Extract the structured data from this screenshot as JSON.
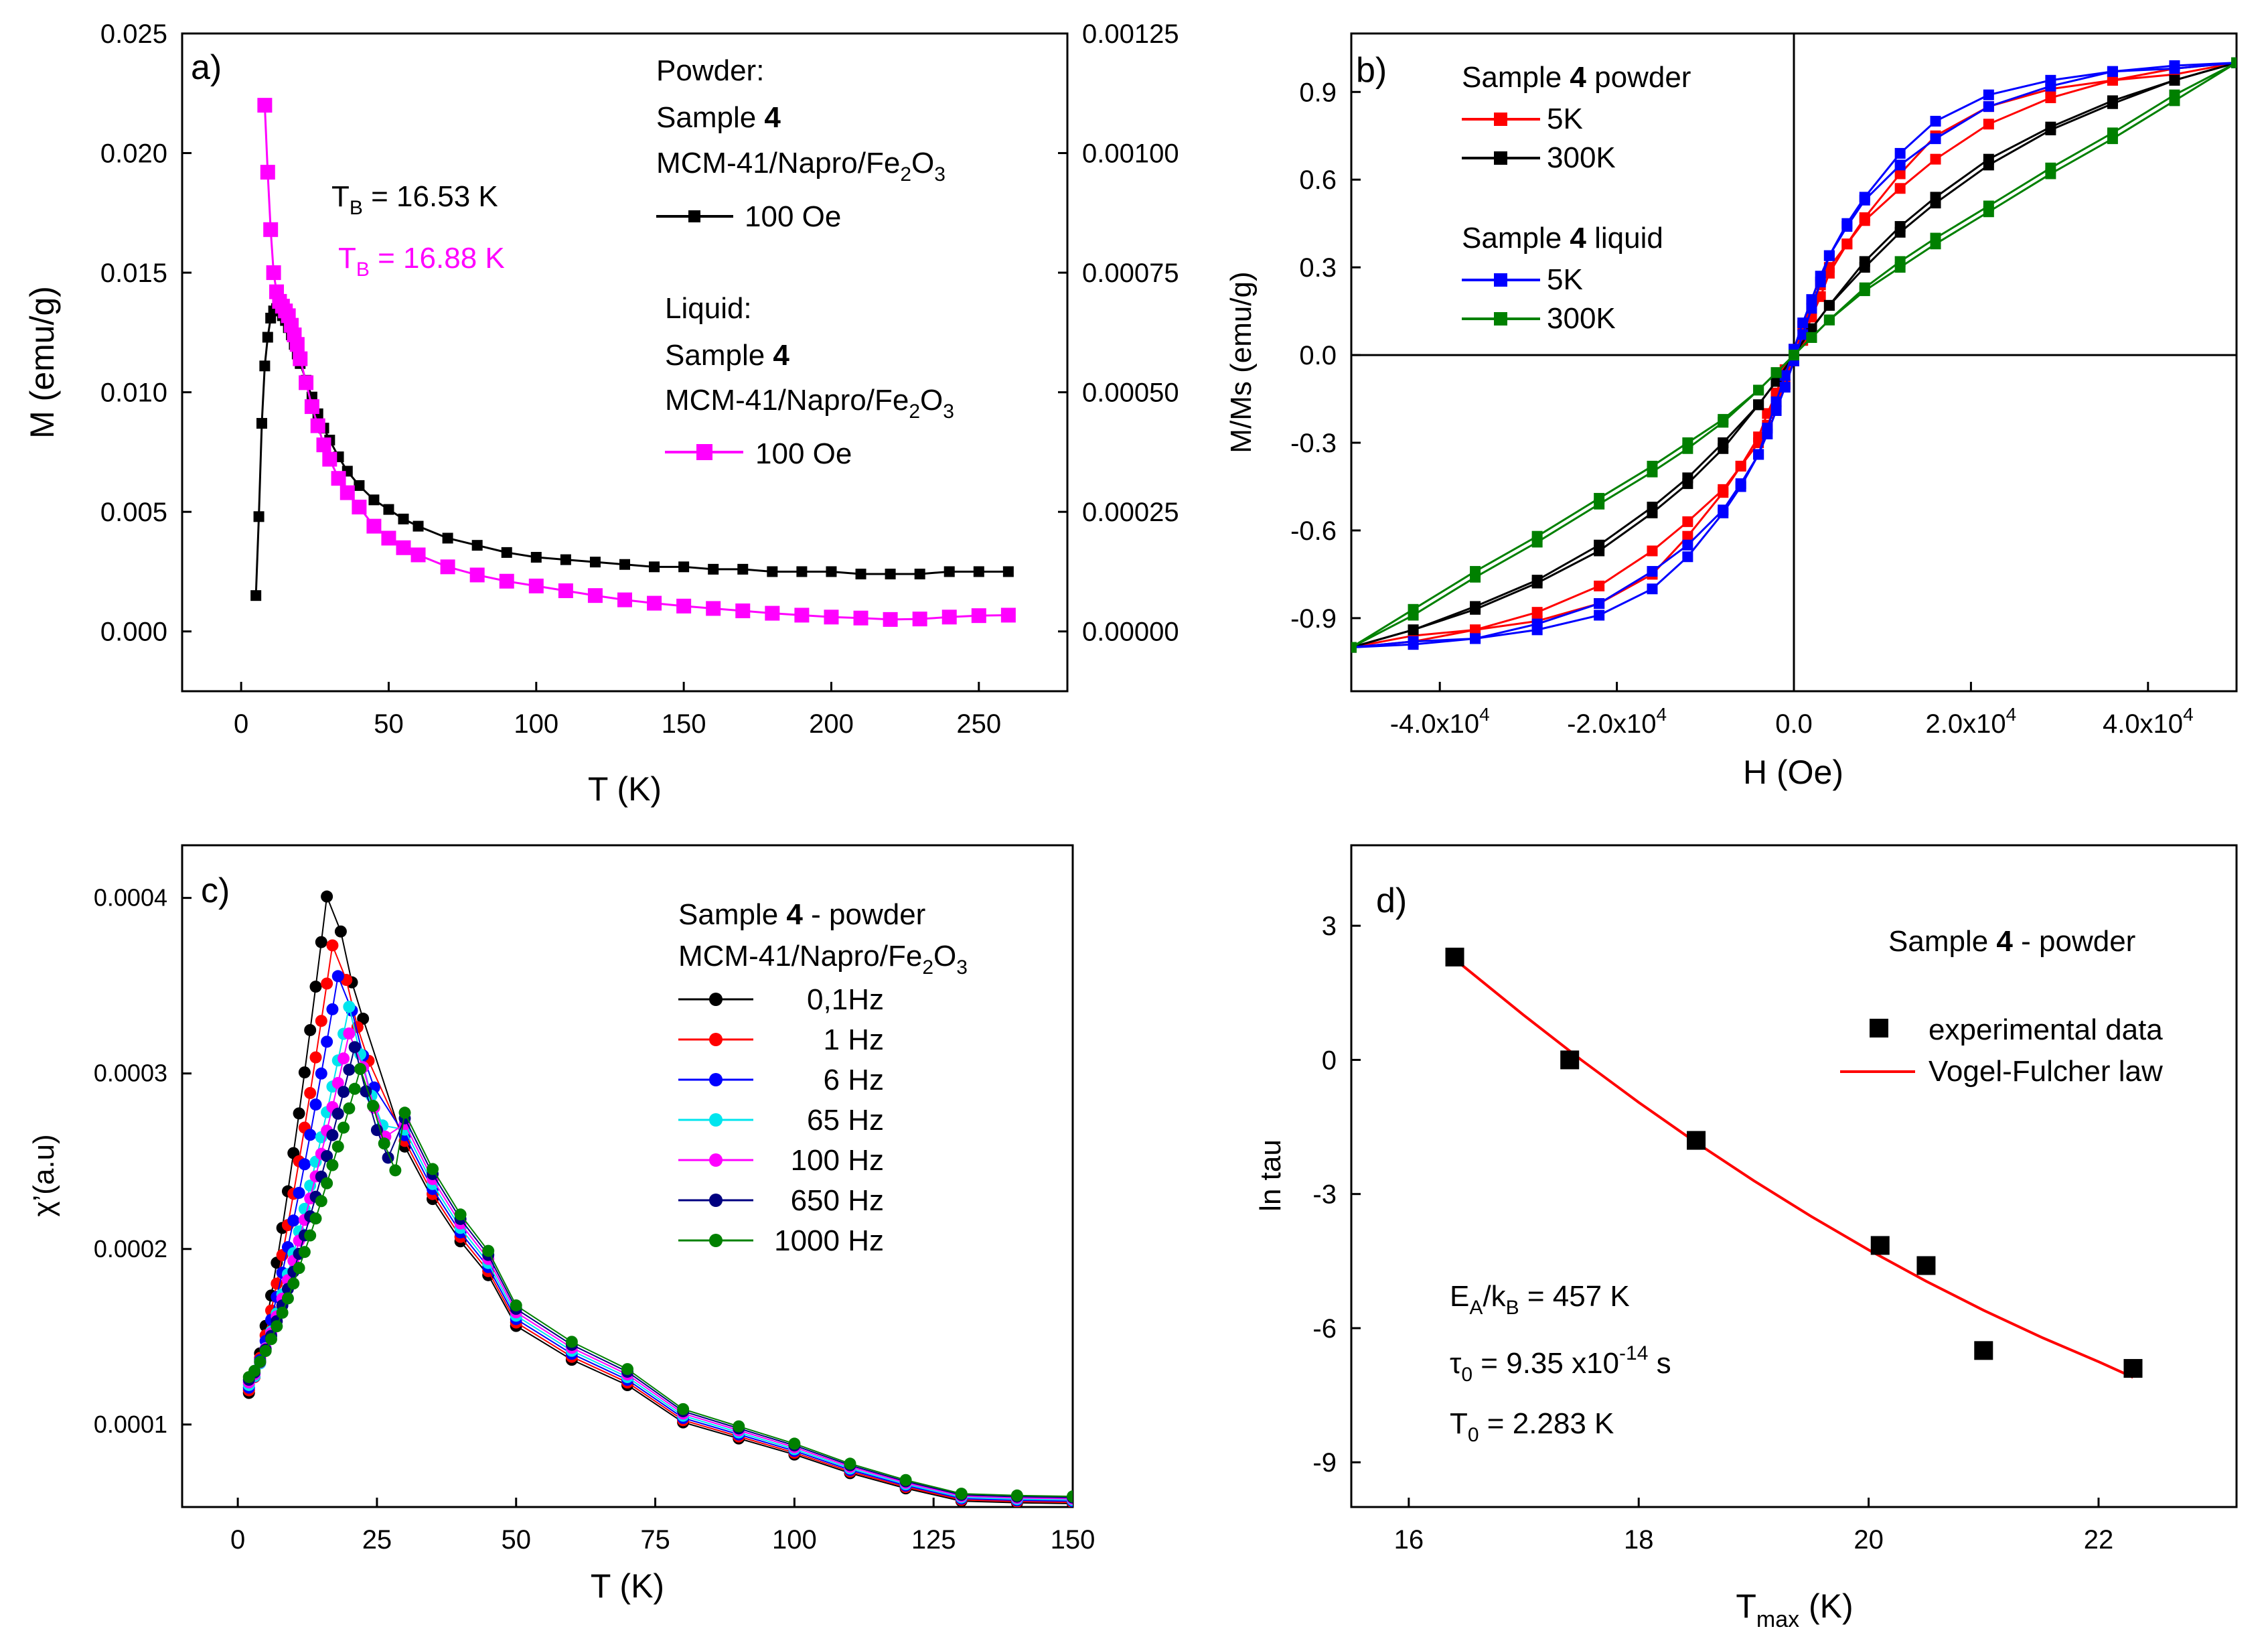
{
  "chart_data": [
    {
      "panel": "a)",
      "type": "line",
      "xlabel": "T (K)",
      "ylabel": "M (emu/g)",
      "xlim": [
        -20,
        280
      ],
      "ylim": [
        -0.0025,
        0.025
      ],
      "xticks": [
        0,
        50,
        100,
        150,
        200,
        250
      ],
      "yticks": [
        0.0,
        0.005,
        0.01,
        0.015,
        0.02,
        0.025
      ],
      "ytick_labels": [
        "0.000",
        "0.005",
        "0.010",
        "0.015",
        "0.020",
        "0.025"
      ],
      "y2lim": [
        -0.000125,
        0.00125
      ],
      "y2ticks": [
        0.0,
        0.00025,
        0.0005,
        0.00075,
        0.001,
        0.00125
      ],
      "y2tick_labels": [
        "0.00000",
        "0.00025",
        "0.00050",
        "0.00075",
        "0.00100",
        "0.00125"
      ],
      "legend": {
        "powder_title": "Powder:",
        "powder_sample_prefix": "Sample ",
        "powder_sample_num": "4",
        "powder_material": "MCM-41/Napro/Fe",
        "powder_sub1": "2",
        "powder_mid": "O",
        "powder_sub2": "3",
        "powder_entry": "100 Oe",
        "liquid_title": "Liquid:",
        "liquid_sample_prefix": "Sample ",
        "liquid_sample_num": "4",
        "liquid_material": "MCM-41/Napro/Fe",
        "liquid_sub1": "2",
        "liquid_mid": "O",
        "liquid_sub2": "3",
        "liquid_entry": "100 Oe"
      },
      "annotations": {
        "tb_powder_prefix": "T",
        "tb_powder_sub": "B",
        "tb_powder_value": " = 16.53 K",
        "tb_liquid_prefix": "T",
        "tb_liquid_sub": "B",
        "tb_liquid_value": " = 16.88 K"
      },
      "series": [
        {
          "name": "Powder 100 Oe",
          "color": "#000000",
          "axis": "left",
          "x": [
            5,
            6,
            7,
            8,
            9,
            10,
            11,
            12,
            13,
            14,
            15,
            16,
            17,
            18,
            19,
            20,
            22,
            24,
            26,
            28,
            30,
            33,
            36,
            40,
            45,
            50,
            55,
            60,
            70,
            80,
            90,
            100,
            110,
            120,
            130,
            140,
            150,
            160,
            170,
            180,
            190,
            200,
            210,
            220,
            230,
            240,
            250,
            260
          ],
          "y": [
            0.0015,
            0.0048,
            0.0087,
            0.0111,
            0.0123,
            0.0131,
            0.0134,
            0.0135,
            0.0134,
            0.0132,
            0.013,
            0.0127,
            0.0124,
            0.012,
            0.0116,
            0.0112,
            0.0105,
            0.0098,
            0.0091,
            0.0085,
            0.008,
            0.0073,
            0.0067,
            0.0061,
            0.0055,
            0.0051,
            0.0047,
            0.0044,
            0.0039,
            0.0036,
            0.0033,
            0.0031,
            0.003,
            0.0029,
            0.0028,
            0.0027,
            0.0027,
            0.0026,
            0.0026,
            0.0025,
            0.0025,
            0.0025,
            0.0024,
            0.0024,
            0.0024,
            0.0025,
            0.0025,
            0.0025
          ]
        },
        {
          "name": "Liquid 100 Oe",
          "color": "#ff00ff",
          "axis": "right",
          "x": [
            8,
            9,
            10,
            11,
            12,
            13,
            14,
            15,
            16,
            17,
            18,
            19,
            20,
            22,
            24,
            26,
            28,
            30,
            33,
            36,
            40,
            45,
            50,
            55,
            60,
            70,
            80,
            90,
            100,
            110,
            120,
            130,
            140,
            150,
            160,
            170,
            180,
            190,
            200,
            210,
            220,
            230,
            240,
            250,
            260
          ],
          "y": [
            0.0011,
            0.00096,
            0.00084,
            0.00075,
            0.00071,
            0.00069,
            0.00068,
            0.00067,
            0.00066,
            0.00064,
            0.00062,
            0.0006,
            0.00057,
            0.00052,
            0.00047,
            0.00043,
            0.00039,
            0.00036,
            0.00032,
            0.00029,
            0.00026,
            0.00022,
            0.000195,
            0.000175,
            0.00016,
            0.000135,
            0.000118,
            0.000105,
            9.5e-05,
            8.5e-05,
            7.5e-05,
            6.6e-05,
            5.9e-05,
            5.3e-05,
            4.8e-05,
            4.3e-05,
            3.8e-05,
            3.4e-05,
            3e-05,
            2.8e-05,
            2.5e-05,
            2.6e-05,
            3e-05,
            3.3e-05,
            3.4e-05
          ]
        }
      ]
    },
    {
      "panel": "b)",
      "type": "line",
      "xlabel": "H (Oe)",
      "ylabel": "M/Ms (emu/g)",
      "xlim": [
        -50000,
        50000
      ],
      "ylim": [
        -1.15,
        1.1
      ],
      "xticks": [
        -40000,
        -20000,
        0,
        20000,
        40000
      ],
      "xtick_labels": [
        {
          "base": "-4.0x10",
          "exp": "4"
        },
        {
          "base": "-2.0x10",
          "exp": "4"
        },
        {
          "base": "0.0",
          "exp": ""
        },
        {
          "base": "2.0x10",
          "exp": "4"
        },
        {
          "base": "4.0x10",
          "exp": "4"
        }
      ],
      "yticks": [
        -0.9,
        -0.6,
        -0.3,
        0.0,
        0.3,
        0.6,
        0.9
      ],
      "ytick_labels": [
        "-0.9",
        "-0.6",
        "-0.3",
        "0.0",
        "0.3",
        "0.6",
        "0.9"
      ],
      "legend": {
        "powder_prefix": "Sample ",
        "powder_num": "4",
        "powder_suffix": " powder",
        "liquid_prefix": "Sample ",
        "liquid_num": "4",
        "liquid_suffix": " liquid",
        "entries": [
          "5K",
          "300K",
          "5K",
          "300K"
        ]
      },
      "series": [
        {
          "name": "powder 5K",
          "color": "#ff0000",
          "x": [
            -50000,
            -43000,
            -36000,
            -29000,
            -22000,
            -16000,
            -12000,
            -8000,
            -6000,
            -4000,
            -3000,
            -2000,
            -1000,
            0,
            1000,
            2000,
            3000,
            4000,
            6000,
            8000,
            12000,
            16000,
            22000,
            29000,
            36000,
            43000,
            50000
          ],
          "y_up": [
            -1.0,
            -0.96,
            -0.94,
            -0.91,
            -0.85,
            -0.75,
            -0.62,
            -0.47,
            -0.38,
            -0.28,
            -0.2,
            -0.13,
            -0.05,
            0.02,
            0.1,
            0.17,
            0.24,
            0.3,
            0.38,
            0.46,
            0.57,
            0.67,
            0.79,
            0.88,
            0.94,
            0.98,
            1.0
          ]
        },
        {
          "name": "powder 300K",
          "color": "#000000",
          "x": [
            -50000,
            -43000,
            -36000,
            -29000,
            -22000,
            -16000,
            -12000,
            -8000,
            -4000,
            -2000,
            0,
            2000,
            4000,
            8000,
            12000,
            16000,
            22000,
            29000,
            36000,
            43000,
            50000
          ],
          "y_up": [
            -1.0,
            -0.94,
            -0.87,
            -0.78,
            -0.67,
            -0.54,
            -0.44,
            -0.32,
            -0.17,
            -0.09,
            0.0,
            0.09,
            0.17,
            0.3,
            0.42,
            0.52,
            0.65,
            0.77,
            0.86,
            0.94,
            1.0
          ]
        },
        {
          "name": "liquid 5K",
          "color": "#0000ff",
          "x": [
            -50000,
            -43000,
            -36000,
            -29000,
            -22000,
            -16000,
            -12000,
            -8000,
            -6000,
            -4000,
            -3000,
            -2000,
            -1000,
            0,
            1000,
            2000,
            3000,
            4000,
            6000,
            8000,
            12000,
            16000,
            22000,
            29000,
            36000,
            43000,
            50000
          ],
          "y_up": [
            -1.0,
            -0.98,
            -0.97,
            -0.94,
            -0.89,
            -0.8,
            -0.69,
            -0.54,
            -0.45,
            -0.34,
            -0.25,
            -0.16,
            -0.07,
            0.02,
            0.11,
            0.19,
            0.27,
            0.34,
            0.44,
            0.53,
            0.65,
            0.74,
            0.85,
            0.92,
            0.97,
            0.99,
            1.0
          ]
        },
        {
          "name": "liquid 300K",
          "color": "#008000",
          "x": [
            -50000,
            -43000,
            -36000,
            -29000,
            -22000,
            -16000,
            -12000,
            -8000,
            -4000,
            -2000,
            0,
            2000,
            4000,
            8000,
            12000,
            16000,
            22000,
            29000,
            36000,
            43000,
            50000
          ],
          "y_up": [
            -1.0,
            -0.89,
            -0.76,
            -0.64,
            -0.51,
            -0.4,
            -0.32,
            -0.23,
            -0.12,
            -0.06,
            0.0,
            0.06,
            0.12,
            0.22,
            0.3,
            0.38,
            0.49,
            0.62,
            0.74,
            0.87,
            1.0
          ]
        }
      ]
    },
    {
      "panel": "c)",
      "type": "scatter",
      "xlabel": "T (K)",
      "ylabel": "χ’(a.u)",
      "xlim": [
        -10,
        150
      ],
      "ylim": [
        5.3e-05,
        0.00043
      ],
      "xticks": [
        0,
        25,
        50,
        75,
        100,
        125,
        150
      ],
      "yticks": [
        0.0001,
        0.0002,
        0.0003,
        0.0004
      ],
      "ytick_labels": [
        "0.0001",
        "0.0002",
        "0.0003",
        "0.0004"
      ],
      "legend": {
        "title_prefix": "Sample ",
        "title_num": "4",
        "title_suffix": " - powder",
        "material": "MCM-41/Napro/Fe",
        "sub1": "2",
        "mid": "O",
        "sub2": "3",
        "entries": [
          "0,1Hz",
          "1 Hz",
          "6 Hz",
          "65 Hz",
          "100 Hz",
          "650 Hz",
          "1000 Hz"
        ]
      },
      "series": [
        {
          "name": "0,1Hz",
          "color": "#000000",
          "peak_T": 16.5,
          "peak": 0.000414
        },
        {
          "name": "1 Hz",
          "color": "#ff0000",
          "peak_T": 17.5,
          "peak": 0.000384
        },
        {
          "name": "6 Hz",
          "color": "#0000ff",
          "peak_T": 18.5,
          "peak": 0.000365
        },
        {
          "name": "65 Hz",
          "color": "#00e5ee",
          "peak_T": 20.0,
          "peak": 0.000338
        },
        {
          "name": "100 Hz",
          "color": "#ff00ff",
          "peak_T": 20.5,
          "peak": 0.00033
        },
        {
          "name": "650 Hz",
          "color": "#000080",
          "peak_T": 21.0,
          "peak": 0.000315
        },
        {
          "name": "1000 Hz",
          "color": "#008000",
          "peak_T": 22.3,
          "peak": 0.000306
        }
      ]
    },
    {
      "panel": "d)",
      "type": "scatter",
      "xlabel_main": "T",
      "xlabel_sub": "max",
      "xlabel_unit": " (K)",
      "ylabel": "ln tau",
      "xlim": [
        15.5,
        23.2
      ],
      "ylim": [
        -10,
        4.8
      ],
      "xticks": [
        16,
        18,
        20,
        22
      ],
      "yticks": [
        -9,
        -6,
        -3,
        0,
        3
      ],
      "title_prefix": "Sample ",
      "title_num": "4",
      "title_suffix": " - powder",
      "legend_entries": [
        "experimental data",
        "Vogel-Fulcher law"
      ],
      "params": {
        "ea_prefix": "E",
        "ea_sub": "A",
        "ea_mid": "/k",
        "ea_sub2": "B",
        "ea_value": " = 457 K",
        "tau_prefix": "τ",
        "tau_sub": "0",
        "tau_value": " = 9.35 x10",
        "tau_exp": "-14",
        "tau_unit": " s",
        "t0_prefix": "T",
        "t0_sub": "0",
        "t0_value": " = 2.283 K"
      },
      "series": [
        {
          "name": "experimental data",
          "color": "#000000",
          "x": [
            16.4,
            17.4,
            18.5,
            20.1,
            20.5,
            21.0,
            22.3
          ],
          "y": [
            2.3,
            0.0,
            -1.8,
            -4.15,
            -4.6,
            -6.5,
            -6.9
          ]
        },
        {
          "name": "Vogel-Fulcher law",
          "color": "#ff0000",
          "x": [
            16.4,
            17.0,
            17.5,
            18.0,
            18.5,
            19.0,
            19.5,
            20.0,
            20.5,
            21.0,
            21.5,
            22.0,
            22.3
          ],
          "y": [
            2.25,
            1.0,
            0.0,
            -0.95,
            -1.85,
            -2.7,
            -3.5,
            -4.25,
            -4.95,
            -5.6,
            -6.2,
            -6.75,
            -7.1
          ]
        }
      ]
    }
  ]
}
